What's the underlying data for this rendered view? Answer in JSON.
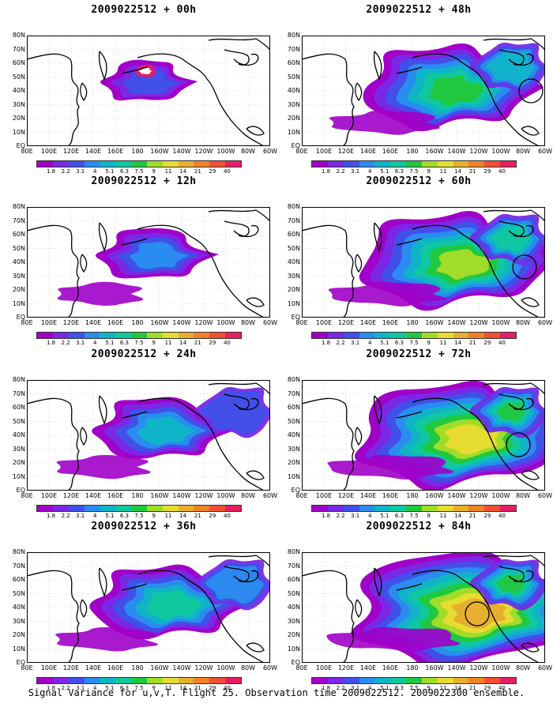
{
  "footer": "Signal Variance for u,v,T. Flight 25. Observation time 2009022512. 2009022300 ensemble.",
  "colorbar": {
    "colors": [
      "#a000c8",
      "#7a28e6",
      "#4050e8",
      "#2a8cf0",
      "#10b4c8",
      "#10c8a0",
      "#20c840",
      "#a0dc28",
      "#e6dc32",
      "#e6af2d",
      "#f08228",
      "#f05032",
      "#e61e64"
    ],
    "labels": [
      "1.8",
      "2.2",
      "3.1",
      "4",
      "5.1",
      "6.3",
      "7.5",
      "9",
      "11",
      "14",
      "21",
      "29",
      "40"
    ]
  },
  "axes": {
    "lat_labels": [
      "80N",
      "70N",
      "60N",
      "50N",
      "40N",
      "30N",
      "20N",
      "10N",
      "EQ"
    ],
    "lon_labels": [
      "80E",
      "100E",
      "120E",
      "140E",
      "160E",
      "180",
      "160W",
      "140W",
      "120W",
      "100W",
      "80W",
      "60W"
    ]
  },
  "panels": [
    {
      "id": "p00",
      "title": "2009022512 + 00h",
      "level": 0
    },
    {
      "id": "p48",
      "title": "2009022512 + 48h",
      "level": 4
    },
    {
      "id": "p12",
      "title": "2009022512 + 12h",
      "level": 1
    },
    {
      "id": "p60",
      "title": "2009022512 + 60h",
      "level": 5
    },
    {
      "id": "p24",
      "title": "2009022512 + 24h",
      "level": 2
    },
    {
      "id": "p72",
      "title": "2009022512 + 72h",
      "level": 6
    },
    {
      "id": "p36",
      "title": "2009022512 + 36h",
      "level": 3
    },
    {
      "id": "p84",
      "title": "2009022512 + 84h",
      "level": 7
    }
  ]
}
